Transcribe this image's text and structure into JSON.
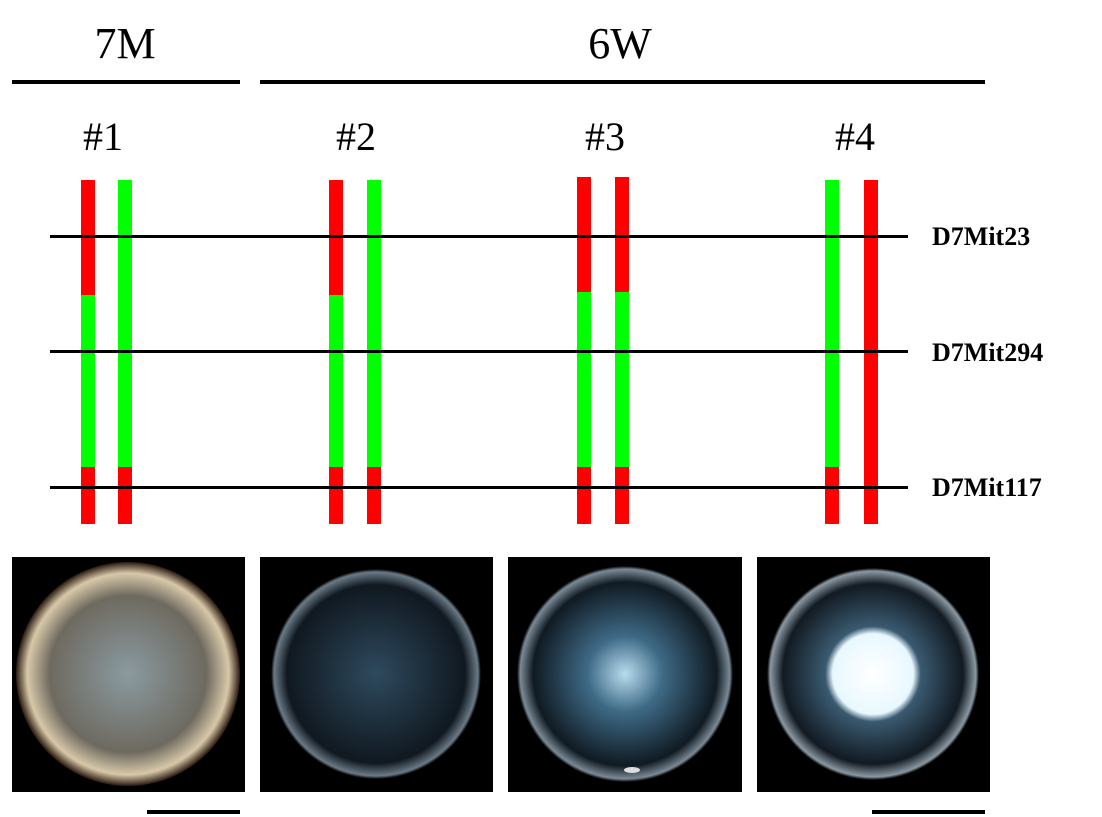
{
  "groups": [
    "7M",
    "6W"
  ],
  "samples": [
    "#1",
    "#2",
    "#3",
    "#4"
  ],
  "markers": [
    "D7Mit23",
    "D7Mit294",
    "D7Mit117"
  ]
}
